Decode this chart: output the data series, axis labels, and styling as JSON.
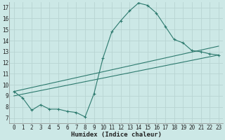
{
  "xlabel": "Humidex (Indice chaleur)",
  "ylabel": "",
  "bg_color": "#cce8e6",
  "grid_color": "#b8d4d2",
  "line_color": "#2d7a6e",
  "xlim": [
    -0.5,
    23.5
  ],
  "ylim": [
    6.5,
    17.5
  ],
  "xticks": [
    0,
    1,
    2,
    3,
    4,
    5,
    6,
    7,
    8,
    9,
    10,
    11,
    12,
    13,
    14,
    15,
    16,
    17,
    18,
    19,
    20,
    21,
    22,
    23
  ],
  "yticks": [
    7,
    8,
    9,
    10,
    11,
    12,
    13,
    14,
    15,
    16,
    17
  ],
  "curve_x": [
    0,
    1,
    2,
    3,
    4,
    5,
    6,
    7,
    8,
    9,
    10,
    11,
    12,
    13,
    14,
    15,
    16,
    17,
    18,
    19,
    20,
    21,
    22,
    23
  ],
  "curve_y": [
    9.4,
    8.8,
    7.7,
    8.2,
    7.8,
    7.8,
    7.6,
    7.5,
    7.1,
    9.2,
    12.4,
    14.8,
    15.8,
    16.7,
    17.4,
    17.2,
    16.5,
    15.3,
    14.1,
    13.8,
    13.1,
    13.0,
    12.8,
    12.7
  ],
  "line2_x": [
    0,
    23
  ],
  "line2_y": [
    9.4,
    13.5
  ],
  "line3_x": [
    0,
    23
  ],
  "line3_y": [
    9.0,
    12.7
  ],
  "figsize": [
    3.2,
    2.0
  ],
  "dpi": 100
}
